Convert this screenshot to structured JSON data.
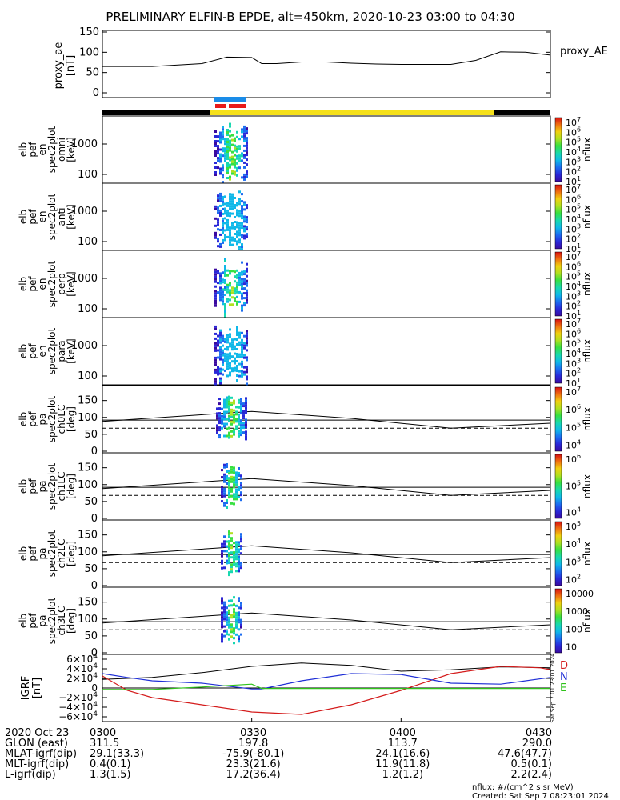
{
  "title": "PRELIMINARY ELFIN-B EPDE, alt=450km, 2020-10-23 03:00 to 04:30",
  "colors": {
    "bar_black": "#000000",
    "bar_yellow": "#f5e01a",
    "bar_blue": "#1a8ce8",
    "bar_red": "#e81a1a",
    "D": "#d41c1c",
    "N": "#1f2fd6",
    "E": "#2ec21a"
  },
  "panels": [
    {
      "ylabel": [
        "elb",
        "pef",
        "en",
        "spec2plot",
        "omni",
        "[keV]"
      ],
      "cblabel": "nflux",
      "cbticks": [
        "10",
        "10",
        "10",
        "10",
        "10",
        "10",
        "10"
      ],
      "cbexp": [
        "1",
        "2",
        "3",
        "4",
        "5",
        "6",
        "7"
      ],
      "cbextra": "0.1"
    },
    {
      "ylabel": [
        "elb",
        "pef",
        "en",
        "spec2plot",
        "anti",
        "[keV]"
      ],
      "cblabel": "nflux",
      "cbticks": [
        "10",
        "10",
        "10",
        "10",
        "10",
        "10",
        "10"
      ],
      "cbexp": [
        "1",
        "2",
        "3",
        "4",
        "5",
        "6",
        "7"
      ],
      "cbextra": "0.1"
    },
    {
      "ylabel": [
        "elb",
        "pef",
        "en",
        "spec2plot",
        "perp",
        "[keV]"
      ],
      "cblabel": "nflux",
      "cbticks": [
        "10",
        "10",
        "10",
        "10",
        "10",
        "10",
        "10"
      ],
      "cbexp": [
        "1",
        "2",
        "3",
        "4",
        "5",
        "6",
        "7"
      ],
      "cbextra": "0.1"
    },
    {
      "ylabel": [
        "elb",
        "pef",
        "en",
        "spec2plot",
        "para",
        "[keV]"
      ],
      "cblabel": "nflux",
      "cbticks": [
        "10",
        "10",
        "10",
        "10",
        "10",
        "10",
        "10"
      ],
      "cbexp": [
        "1",
        "2",
        "3",
        "4",
        "5",
        "6",
        "7"
      ],
      "cbextra": "0.1"
    },
    {
      "ylabel": [
        "elb",
        "pef",
        "pa",
        "spec2plot",
        "ch0LC",
        "[deg]"
      ],
      "cblabel": "nflux",
      "cbticks": [
        "10",
        "10",
        "10",
        "10"
      ],
      "cbexp": [
        "4",
        "5",
        "6",
        "7"
      ]
    },
    {
      "ylabel": [
        "elb",
        "pef",
        "pa",
        "spec2plot",
        "ch1LC",
        "[deg]"
      ],
      "cblabel": "nflux",
      "cbticks": [
        "10",
        "10",
        "10"
      ],
      "cbexp": [
        "4",
        "5",
        "6"
      ]
    },
    {
      "ylabel": [
        "elb",
        "pef",
        "pa",
        "spec2plot",
        "ch2LC",
        "[deg]"
      ],
      "cblabel": "nflux",
      "cbticks": [
        "10",
        "10",
        "10",
        "10"
      ],
      "cbexp": [
        "2",
        "3",
        "4",
        "5"
      ]
    },
    {
      "ylabel": [
        "elb",
        "pef",
        "pa",
        "spec2plot",
        "ch3LC",
        "[deg]"
      ],
      "cblabel": "nflux",
      "cbticks": [
        "10000",
        "1000",
        "100",
        "10"
      ]
    }
  ],
  "proxy_panel": {
    "ylabel": [
      "proxy_ae",
      "[nT]"
    ],
    "legend": "proxy_AE",
    "yticks": [
      "150",
      "100",
      "50",
      "0"
    ]
  },
  "energy_yticks": [
    "1000",
    "100"
  ],
  "pa_yticks": [
    "150",
    "100",
    "50",
    "0"
  ],
  "bfield_panel": {
    "ylabel": [
      "IGRF",
      "[nT]"
    ],
    "yticks": [
      {
        "m": "6",
        "e": "4"
      },
      {
        "m": "4",
        "e": "4"
      },
      {
        "m": "2",
        "e": "4"
      },
      {
        "m": "0",
        "e": ""
      },
      {
        "m": "−2",
        "e": "4"
      },
      {
        "m": "−4",
        "e": "4"
      },
      {
        "m": "−6",
        "e": "4"
      }
    ],
    "legend": [
      "D",
      "N",
      "E"
    ],
    "side_note": "Sat Sep  7 01:23:01 2024"
  },
  "xaxis_rows": [
    {
      "label": "2020 Oct 23",
      "vals": [
        "0300",
        "0330",
        "0400",
        "0430"
      ]
    },
    {
      "label": "GLON (east)",
      "vals": [
        "311.5",
        "197.8",
        "113.7",
        "290.0"
      ]
    },
    {
      "label": "MLAT-igrf(dip)",
      "vals": [
        "29.1(33.3)",
        "-75.9(-80.1)",
        "24.1(16.6)",
        "47.6(47.7)"
      ]
    },
    {
      "label": "MLT-igrf(dip)",
      "vals": [
        "0.4(0.1)",
        "23.3(21.6)",
        "11.9(11.8)",
        "0.5(0.1)"
      ]
    },
    {
      "label": "L-igrf(dip)",
      "vals": [
        "1.3(1.5)",
        "17.2(36.4)",
        "1.2(1.2)",
        "2.2(2.4)"
      ]
    }
  ],
  "footer": {
    "units": "nflux: #/(cm^2 s sr MeV)",
    "created": "Created: Sat Sep  7 08:23:01 2024"
  },
  "chart_data": {
    "type": "line",
    "x_range": [
      "0300",
      "0430"
    ],
    "proxy_ae": {
      "ylim": [
        0,
        150
      ],
      "t": [
        0,
        5,
        10,
        20,
        25,
        30,
        32,
        35,
        40,
        45,
        50,
        55,
        60,
        70,
        75,
        80,
        85,
        90
      ],
      "v": [
        65,
        65,
        65,
        72,
        88,
        87,
        72,
        72,
        76,
        76,
        73,
        71,
        70,
        70,
        80,
        101,
        100,
        93
      ]
    },
    "bfield": {
      "ylim": [
        -60000,
        60000
      ],
      "series": [
        {
          "name": "D",
          "t": [
            0,
            5,
            10,
            20,
            30,
            40,
            50,
            60,
            70,
            80,
            88,
            90
          ],
          "v": [
            25000,
            -5000,
            -20000,
            -35000,
            -50000,
            -55000,
            -35000,
            -5000,
            30000,
            45000,
            42000,
            38000
          ]
        },
        {
          "name": "N",
          "t": [
            0,
            5,
            10,
            20,
            30,
            32,
            40,
            50,
            60,
            70,
            80,
            90
          ],
          "v": [
            30000,
            22000,
            15000,
            10000,
            -2000,
            -2000,
            15000,
            30000,
            28000,
            10000,
            8000,
            22000
          ]
        },
        {
          "name": "E",
          "t": [
            0,
            10,
            20,
            30,
            32,
            40,
            50,
            60,
            70,
            80,
            90
          ],
          "v": [
            -3000,
            -3000,
            2000,
            8000,
            -1000,
            -1000,
            -1000,
            -1000,
            -1000,
            -1000,
            -1000
          ]
        }
      ]
    }
  }
}
